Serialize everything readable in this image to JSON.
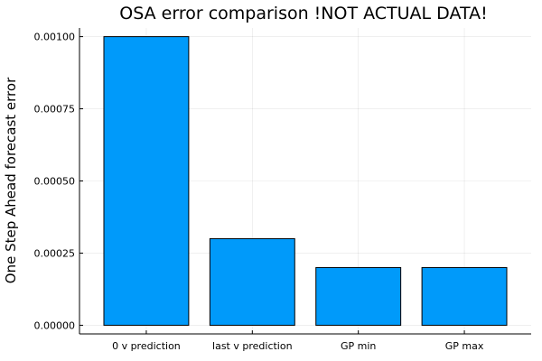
{
  "chart_data": {
    "type": "bar",
    "title": "OSA error comparison !NOT ACTUAL DATA!",
    "xlabel": "",
    "ylabel": "One Step Ahead forecast error",
    "categories": [
      "0 v prediction",
      "last v prediction",
      "GP min",
      "GP max"
    ],
    "values": [
      0.001,
      0.0003,
      0.0002,
      0.0002
    ],
    "ylim": [
      -3e-05,
      0.00103
    ],
    "yticks": [
      0.0,
      0.00025,
      0.0005,
      0.00075,
      0.001
    ],
    "ytick_labels": [
      "0.00000",
      "0.00025",
      "0.00050",
      "0.00075",
      "0.00100"
    ],
    "grid": true,
    "legend": "none",
    "bar_color": "#009AFA"
  }
}
